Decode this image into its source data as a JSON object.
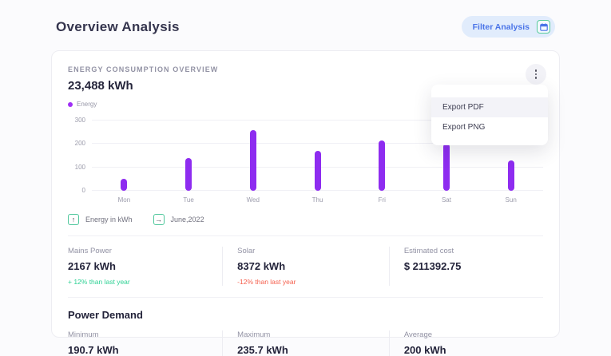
{
  "page": {
    "title": "Overview Analysis"
  },
  "header": {
    "filter_button_label": "Filter Analysis"
  },
  "card": {
    "label": "ENERGY CONSUMPTION OVERVIEW",
    "total": "23,488 kWh",
    "legend_label": "Energy"
  },
  "menu": {
    "items": [
      {
        "label": "Export PDF"
      },
      {
        "label": "Export PNG"
      }
    ]
  },
  "chart_data": {
    "type": "bar",
    "title": "Energy Consumption Overview",
    "series_name": "Energy",
    "categories": [
      "Mon",
      "Tue",
      "Wed",
      "Thu",
      "Fri",
      "Sat",
      "Sun"
    ],
    "values": [
      50,
      140,
      260,
      170,
      215,
      200,
      130
    ],
    "xlabel": "",
    "ylabel": "Energy in kWh",
    "yticks": [
      0,
      100,
      200,
      300
    ],
    "ylim": [
      0,
      300
    ],
    "grid": true,
    "legend_position": "top-left",
    "bar_color": "#8e2cf0"
  },
  "tags": [
    {
      "icon": "arrow-up",
      "label": "Energy in kWh"
    },
    {
      "icon": "arrow-right",
      "label": "June,2022"
    }
  ],
  "stats": [
    {
      "label": "Mains Power",
      "value": "2167 kWh",
      "delta": "+ 12% than last year"
    },
    {
      "label": "Solar",
      "value": "8372 kWh",
      "delta": "-12% than last year"
    },
    {
      "label": "Estimated cost",
      "value": "$ 211392.75",
      "delta": ""
    }
  ],
  "power_demand": {
    "title": "Power Demand",
    "stats": [
      {
        "label": "Minimum",
        "value": "190.7 kWh"
      },
      {
        "label": "Maximum",
        "value": "235.7 kWh"
      },
      {
        "label": "Average",
        "value": "200 kWh"
      }
    ]
  },
  "colors": {
    "bar_purple": "#8e2cf0",
    "legend_dot": "#a02ff5",
    "accent_blue": "#4a74e8",
    "accent_teal": "#4fc79c",
    "delta_green": "#2ed194",
    "delta_red": "#f5604e"
  }
}
